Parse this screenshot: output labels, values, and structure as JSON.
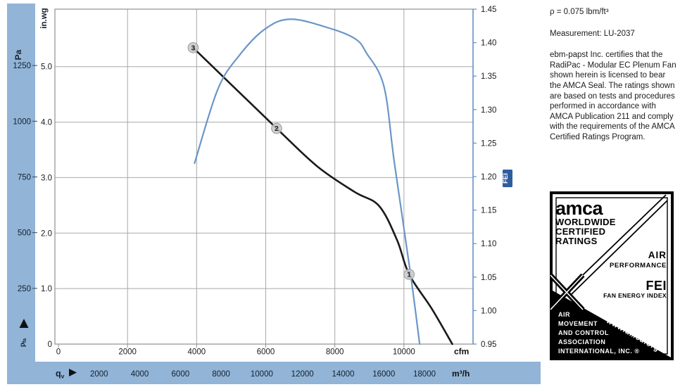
{
  "chart": {
    "left_axis": {
      "unit_primary": "Pa",
      "unit_secondary": "in.wg",
      "pa_ticks": [
        1250,
        1000,
        750,
        500,
        250
      ],
      "inwg_values": [
        5,
        4,
        3,
        2,
        1,
        0
      ],
      "inwg_labels": [
        "5.0",
        "4.0",
        "3.0",
        "2.0",
        "1.0",
        "0"
      ],
      "arrow": "up",
      "bottom_symbol_main": "p",
      "bottom_symbol_sub": "fa"
    },
    "x_axis": {
      "unit_top": "cfm",
      "unit_bottom": "m³/h",
      "flow_symbol_main": "q",
      "flow_symbol_sub": "v",
      "cfm_ticks": [
        0,
        2000,
        4000,
        6000,
        8000,
        10000
      ],
      "m3h_ticks": [
        2000,
        4000,
        6000,
        8000,
        10000,
        12000,
        14000,
        16000,
        18000
      ]
    },
    "fei_axis": {
      "label": "FEI",
      "ticks": [
        1.45,
        1.4,
        1.35,
        1.3,
        1.25,
        1.2,
        1.15,
        1.1,
        1.05,
        1.0,
        0.95
      ]
    }
  },
  "chart_data": {
    "type": "line",
    "title": "",
    "xlabel_top": "cfm",
    "xlabel_bottom": "m³/h",
    "ylabel_left": "Pa / in.wg",
    "ylabel_right": "FEI",
    "grid": true,
    "axes": {
      "cfm": {
        "range": [
          0,
          12000
        ],
        "px": [
          83,
          672
        ]
      },
      "pa": {
        "range": [
          0,
          1503
        ],
        "px": [
          489,
          13
        ]
      },
      "fei": {
        "range": [
          0.95,
          1.45
        ],
        "px": [
          489,
          13
        ]
      },
      "pa_per_inwg": 249,
      "m3h_per_cfm": 1.699,
      "grid_cfm": [
        2000,
        4000,
        6000,
        8000,
        10000
      ],
      "grid_inwg": [
        1,
        2,
        3,
        4,
        5
      ]
    },
    "series": [
      {
        "name": "static-pressure-curve",
        "color": "#1a1a1a",
        "y_unit": "Pa",
        "x_cfm": [
          3900,
          6315,
          7495,
          8570,
          9280,
          9800,
          10150,
          10800,
          11400
        ],
        "pa": [
          1330,
          968,
          797,
          683,
          620,
          467,
          313,
          160,
          0
        ]
      },
      {
        "name": "fei-curve",
        "color": "#6b96c8",
        "y_unit": "FEI",
        "x_cfm": [
          3940,
          4610,
          5220,
          5970,
          6740,
          7940,
          8610,
          8910,
          9420,
          9725,
          10190,
          10455
        ],
        "fei": [
          1.22,
          1.33,
          1.38,
          1.42,
          1.435,
          1.42,
          1.405,
          1.385,
          1.335,
          1.22,
          1.055,
          0.95
        ]
      }
    ],
    "markers": [
      {
        "label": "1",
        "cfm": 10150,
        "pa": 313
      },
      {
        "label": "2",
        "cfm": 6315,
        "pa": 968
      },
      {
        "label": "3",
        "cfm": 3900,
        "pa": 1330
      }
    ],
    "colors": {
      "band": "#91b4d7",
      "grid": "#a8a8a8",
      "fei_axis": "#6b96c8",
      "fei_tag_bg": "#2d5d9f"
    }
  },
  "side_panel": {
    "density": "ρ = 0.075 lbm/ft³",
    "measurement": "Measurement: LU-2037",
    "certification": "ebm-papst Inc. certifies that the RadiPac - Modular EC Plenum Fan shown herein is licensed to bear the AMCA Seal. The ratings shown are based on tests and procedures performed in accordance with AMCA Publication 211 and comply with the requirements of the AMCA Certified Ratings Program."
  },
  "seal": {
    "brand": "amca",
    "line1": "WORLDWIDE",
    "line2": "CERTIFIED",
    "line3": "RATINGS",
    "air": "AIR",
    "performance": "PERFORMANCE",
    "fei": "FEI",
    "fei_sub": "FAN ENERGY INDEX",
    "org_lines": [
      "AIR",
      "MOVEMENT",
      "AND CONTROL",
      "ASSOCIATION",
      "INTERNATIONAL, INC. ®"
    ],
    "url": "www.amca.org"
  }
}
